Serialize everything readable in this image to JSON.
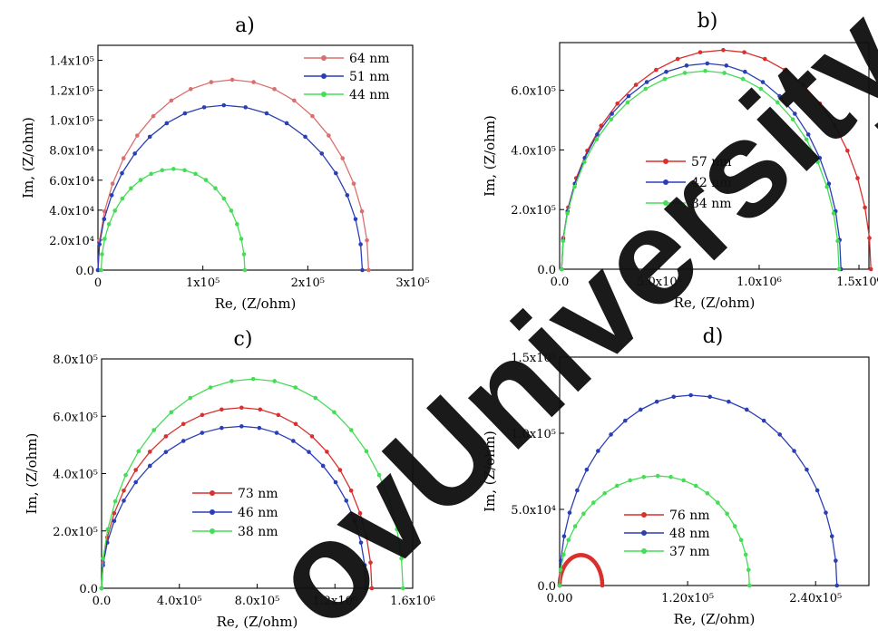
{
  "watermark": {
    "text": "ovUniversity",
    "color": "#111111"
  },
  "chart_data": [
    {
      "type": "scatter",
      "title": "a)",
      "xlabel": "Re, (Z/ohm)",
      "ylabel": "Im, (Z/ohm)",
      "xlim": [
        0,
        300000
      ],
      "ylim": [
        0,
        150000
      ],
      "xticks": [
        0,
        100000,
        200000,
        300000
      ],
      "xtick_labels": [
        "0",
        "1x10⁵",
        "2x10⁵",
        "3x10⁵"
      ],
      "yticks": [
        0,
        20000,
        40000,
        60000,
        80000,
        100000,
        120000,
        140000
      ],
      "ytick_labels": [
        "0.0",
        "2.0x10⁴",
        "4.0x10⁴",
        "6.0x10⁴",
        "8.0x10⁴",
        "1.0x10⁵",
        "1.2x10⁵",
        "1.4x10⁵"
      ],
      "legend_position": "top-right",
      "series": [
        {
          "name": "64 nm",
          "color": "#d9706f",
          "arc": {
            "x_start": 0,
            "x_end": 258000,
            "peak_x": 128000,
            "peak_y": 127000
          },
          "points": 20
        },
        {
          "name": "51 nm",
          "color": "#2b3fb5",
          "arc": {
            "x_start": 0,
            "x_end": 252000,
            "peak_x": 120000,
            "peak_y": 110000
          },
          "points": 20
        },
        {
          "name": "44 nm",
          "color": "#44dd55",
          "arc": {
            "x_start": 3000,
            "x_end": 140000,
            "peak_x": 72000,
            "peak_y": 67500
          },
          "points": 20
        }
      ]
    },
    {
      "type": "scatter",
      "title": "b)",
      "xlabel": "Re, (Z/ohm)",
      "ylabel": "Im, (Z/ohm)",
      "xlim": [
        0,
        1550000
      ],
      "ylim": [
        0,
        760000
      ],
      "xticks": [
        0,
        500000,
        1000000,
        1500000
      ],
      "xtick_labels": [
        "0.0",
        "5.0x10⁵",
        "1.0x10⁶",
        "1.5x10⁶"
      ],
      "yticks": [
        0,
        200000,
        400000,
        600000
      ],
      "ytick_labels": [
        "0.0",
        "2.0x10⁵",
        "4.0x10⁵",
        "6.0x10⁵"
      ],
      "legend_position": "center",
      "series": [
        {
          "name": "57 nm",
          "color": "#d9302f",
          "arc": {
            "x_start": 10000,
            "x_end": 1560000,
            "peak_x": 820000,
            "peak_y": 735000
          },
          "points": 22
        },
        {
          "name": "42 nm",
          "color": "#2b3fb5",
          "arc": {
            "x_start": 10000,
            "x_end": 1410000,
            "peak_x": 740000,
            "peak_y": 690000
          },
          "points": 22
        },
        {
          "name": "34 nm",
          "color": "#44dd55",
          "arc": {
            "x_start": 10000,
            "x_end": 1400000,
            "peak_x": 730000,
            "peak_y": 665000
          },
          "points": 22
        }
      ]
    },
    {
      "type": "scatter",
      "title": "c)",
      "xlabel": "Re, (Z/ohm)",
      "ylabel": "Im, (Z/ohm)",
      "xlim": [
        0,
        1600000
      ],
      "ylim": [
        0,
        800000
      ],
      "xticks": [
        0,
        400000,
        800000,
        1200000,
        1600000
      ],
      "xtick_labels": [
        "0.0",
        "4.0x10⁵",
        "8.0x10⁵",
        "1.2x10⁶",
        "1.6x10⁶"
      ],
      "yticks": [
        0,
        200000,
        400000,
        600000,
        800000
      ],
      "ytick_labels": [
        "0.0",
        "2.0x10⁵",
        "4.0x10⁵",
        "6.0x10⁵",
        "8.0x10⁵"
      ],
      "legend_position": "center",
      "series": [
        {
          "name": "73 nm",
          "color": "#d9302f",
          "arc": {
            "x_start": 0,
            "x_end": 1390000,
            "peak_x": 720000,
            "peak_y": 630000
          },
          "points": 22
        },
        {
          "name": "46 nm",
          "color": "#2b3fb5",
          "arc": {
            "x_start": 0,
            "x_end": 1360000,
            "peak_x": 720000,
            "peak_y": 565000
          },
          "points": 22
        },
        {
          "name": "38 nm",
          "color": "#44dd55",
          "arc": {
            "x_start": 0,
            "x_end": 1550000,
            "peak_x": 780000,
            "peak_y": 730000
          },
          "points": 22
        }
      ]
    },
    {
      "type": "scatter",
      "title": "d)",
      "xlabel": "Re, (Z/ohm)",
      "ylabel": "Im, (Z/ohm)",
      "xlim": [
        0,
        290000
      ],
      "ylim": [
        0,
        150000
      ],
      "xticks": [
        0,
        120000,
        240000
      ],
      "xtick_labels": [
        "0.00",
        "1.20x10⁵",
        "2.40x10⁵"
      ],
      "yticks": [
        0,
        50000,
        100000,
        150000
      ],
      "ytick_labels": [
        "0.0",
        "5.0x10⁴",
        "1.0x10⁵",
        "1.5x10⁵"
      ],
      "legend_position": "center-left",
      "series": [
        {
          "name": "76 nm",
          "color": "#d9302f",
          "arc": {
            "x_start": 0,
            "x_end": 40000,
            "peak_x": 20000,
            "peak_y": 20000
          },
          "points": 60
        },
        {
          "name": "48 nm",
          "color": "#2b3fb5",
          "arc": {
            "x_start": 0,
            "x_end": 260000,
            "peak_x": 123000,
            "peak_y": 125000
          },
          "points": 24
        },
        {
          "name": "37 nm",
          "color": "#44dd55",
          "arc": {
            "x_start": 0,
            "x_end": 178000,
            "peak_x": 92000,
            "peak_y": 72000
          },
          "points": 22
        }
      ]
    }
  ]
}
